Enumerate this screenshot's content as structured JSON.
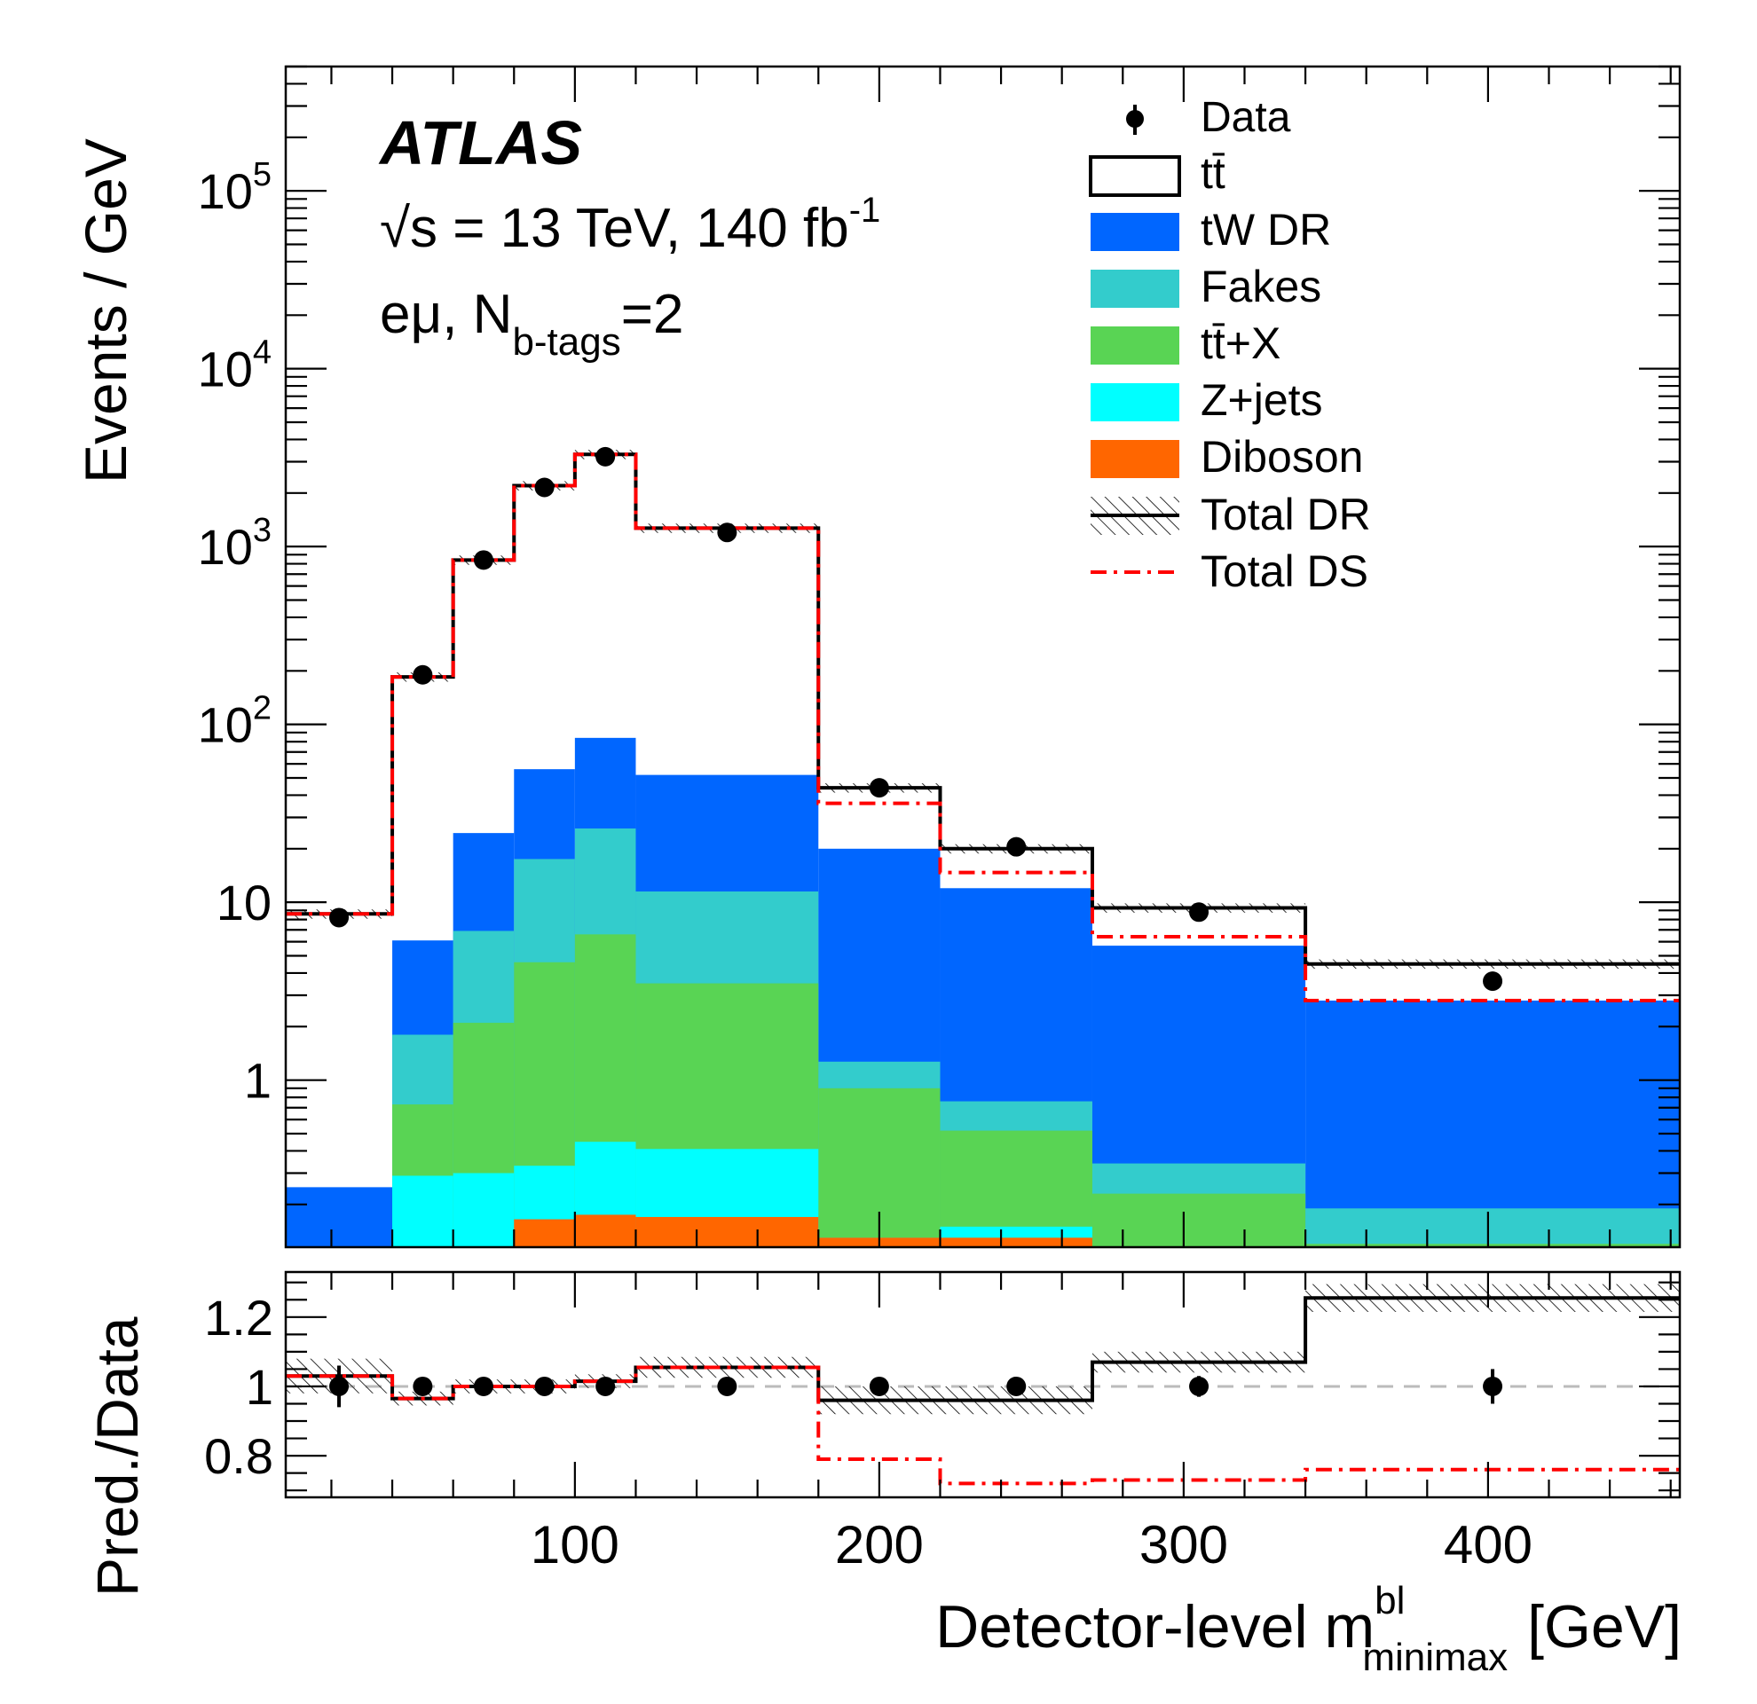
{
  "chart_data": [
    {
      "type": "bar",
      "panel": "main",
      "experiment_label": "ATLAS",
      "energy_label": "√s = 13 TeV, 140 fb",
      "energy_label_sup": "-1",
      "channel_label_pre": "eμ, N",
      "channel_label_sub": "b-tags",
      "channel_label_post": "=2",
      "ylabel": "Events / GeV",
      "yscale": "log",
      "ylim": [
        0.115,
        500000
      ],
      "xlim": [
        5,
        463
      ],
      "y_tick_labels": [
        "1",
        "10",
        "10²",
        "10³",
        "10⁴",
        "10⁵"
      ],
      "bin_edges": [
        5,
        40,
        60,
        80,
        100,
        120,
        180,
        220,
        270,
        340,
        463
      ],
      "stack": [
        {
          "name": "Diboson",
          "color": "#ff6600",
          "top": [
            0,
            0,
            0,
            0.165,
            0.175,
            0.17,
            0.13,
            0.13,
            0,
            0
          ]
        },
        {
          "name": "Z+jets",
          "color": "#00ffff",
          "top": [
            0,
            0.29,
            0.3,
            0.33,
            0.45,
            0.41,
            0.13,
            0.15,
            0,
            0
          ]
        },
        {
          "name": "tt̄+X",
          "color": "#59d454",
          "top": [
            0,
            0.73,
            2.1,
            4.6,
            6.6,
            3.5,
            0.9,
            0.52,
            0.23,
            0.12
          ]
        },
        {
          "name": "Fakes",
          "color": "#33cccc",
          "top": [
            0,
            1.8,
            6.9,
            17.5,
            26,
            11.5,
            1.27,
            0.76,
            0.34,
            0.19
          ]
        },
        {
          "name": "tW DR",
          "color": "#0066ff",
          "top": [
            0.25,
            6.1,
            24.5,
            56,
            84,
            52,
            20,
            12,
            5.7,
            2.8
          ]
        },
        {
          "name": "tt̄",
          "color": "#ffffff",
          "top": [
            8.6,
            185,
            840,
            2200,
            3300,
            1270,
            44,
            20,
            9.3,
            4.5
          ]
        }
      ],
      "total_dr": [
        8.6,
        185,
        840,
        2200,
        3300,
        1270,
        44,
        20,
        9.3,
        4.5
      ],
      "total_ds": [
        8.6,
        185,
        840,
        2200,
        3300,
        1270,
        36,
        14.7,
        6.4,
        2.8
      ],
      "data_points": {
        "x": [
          22.5,
          50,
          70,
          90,
          110,
          150,
          200,
          245,
          305,
          401.5
        ],
        "y": [
          8.2,
          190,
          840,
          2150,
          3200,
          1200,
          44,
          20.5,
          8.8,
          3.6
        ]
      },
      "legend": [
        "Data",
        "tt̄",
        "tW DR",
        "Fakes",
        "tt̄+X",
        "Z+jets",
        "Diboson",
        "Total DR",
        "Total DS"
      ],
      "legend_placement": "top-right"
    },
    {
      "type": "line",
      "panel": "ratio",
      "ylabel": "Pred./Data",
      "ylim": [
        0.68,
        1.33
      ],
      "y_tick_labels": [
        "0.8",
        "1",
        "1.2"
      ],
      "xlabel_pre": "Detector-level m",
      "xlabel_sup": "bl",
      "xlabel_sub": "minimax",
      "xlabel_post": "[GeV]",
      "x_tick_labels": [
        "100",
        "200",
        "300",
        "400"
      ],
      "x_ticks": [
        100,
        200,
        300,
        400
      ],
      "reference_line": 1.0,
      "bin_edges": [
        5,
        40,
        60,
        80,
        100,
        120,
        180,
        220,
        270,
        340,
        463
      ],
      "total_dr": [
        1.03,
        0.965,
        1.0,
        1.0,
        1.015,
        1.055,
        0.96,
        0.96,
        1.07,
        1.255
      ],
      "total_dr_band": [
        0.05,
        0.02,
        0.02,
        0.02,
        0.02,
        0.03,
        0.04,
        0.04,
        0.03,
        0.04
      ],
      "total_ds": [
        1.03,
        0.965,
        1.0,
        1.0,
        1.015,
        1.055,
        0.79,
        0.72,
        0.73,
        0.76
      ],
      "data_points": {
        "x": [
          22.5,
          50,
          70,
          90,
          110,
          150,
          200,
          245,
          305,
          401.5
        ],
        "y": [
          1,
          1,
          1,
          1,
          1,
          1,
          1,
          1,
          1,
          1
        ],
        "err": [
          0.06,
          0.015,
          0.01,
          0.01,
          0.01,
          0.01,
          0.02,
          0.02,
          0.03,
          0.05
        ]
      }
    }
  ]
}
